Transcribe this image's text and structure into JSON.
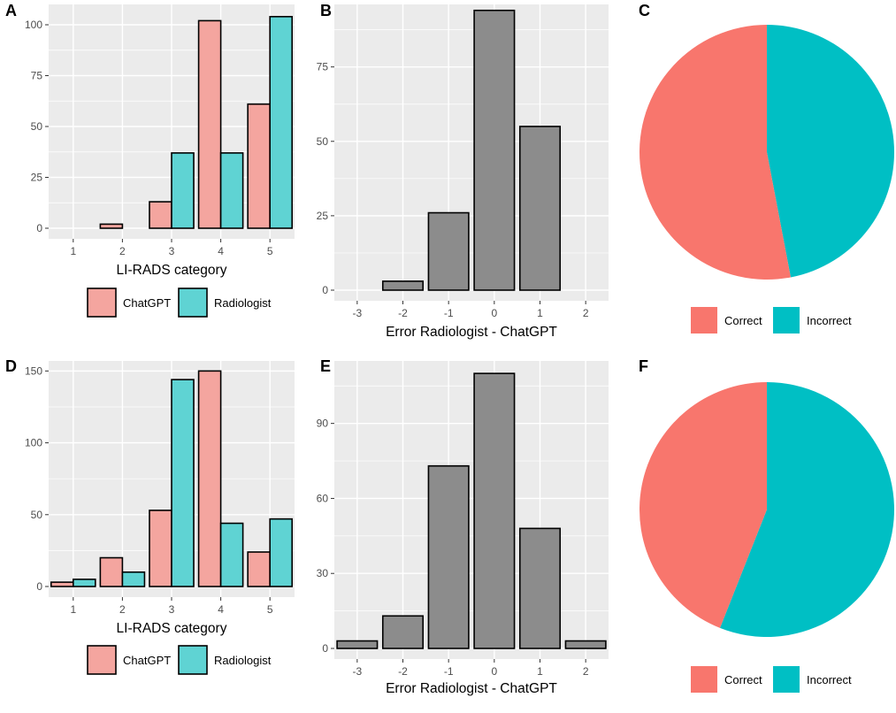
{
  "chart_data": [
    {
      "panel": "A",
      "type": "bar",
      "categories": [
        "1",
        "2",
        "3",
        "4",
        "5"
      ],
      "series": [
        {
          "name": "ChatGPT",
          "values": [
            0,
            2,
            13,
            102,
            61
          ]
        },
        {
          "name": "Radiologist",
          "values": [
            0,
            0,
            37,
            37,
            104
          ]
        }
      ],
      "xlabel": "LI-RADS category",
      "ylabel": "",
      "yticks": [
        "0",
        "25",
        "50",
        "75",
        "100"
      ],
      "ylim": [
        0,
        110
      ],
      "legend": "bottom"
    },
    {
      "panel": "B",
      "type": "bar",
      "categories": [
        "-3",
        "-2",
        "-1",
        "0",
        "1",
        "2"
      ],
      "values": [
        0,
        3,
        26,
        94,
        55,
        0
      ],
      "xlabel": "Error Radiologist - ChatGPT",
      "yticks": [
        "0",
        "25",
        "50",
        "75"
      ],
      "ylim": [
        0,
        96
      ]
    },
    {
      "panel": "C",
      "type": "pie",
      "slices": [
        {
          "name": "Correct",
          "value": 53
        },
        {
          "name": "Incorrect",
          "value": 47
        }
      ],
      "legend": "bottom"
    },
    {
      "panel": "D",
      "type": "bar",
      "categories": [
        "1",
        "2",
        "3",
        "4",
        "5"
      ],
      "series": [
        {
          "name": "ChatGPT",
          "values": [
            3,
            20,
            53,
            150,
            24
          ]
        },
        {
          "name": "Radiologist",
          "values": [
            5,
            10,
            144,
            44,
            47
          ]
        }
      ],
      "xlabel": "LI-RADS category",
      "yticks": [
        "0",
        "50",
        "100",
        "150"
      ],
      "ylim": [
        0,
        157
      ],
      "legend": "bottom"
    },
    {
      "panel": "E",
      "type": "bar",
      "categories": [
        "-3",
        "-2",
        "-1",
        "0",
        "1",
        "2"
      ],
      "values": [
        3,
        13,
        73,
        110,
        48,
        3
      ],
      "xlabel": "Error Radiologist - ChatGPT",
      "yticks": [
        "0",
        "30",
        "60",
        "90"
      ],
      "ylim": [
        0,
        115
      ]
    },
    {
      "panel": "F",
      "type": "pie",
      "slices": [
        {
          "name": "Correct",
          "value": 44
        },
        {
          "name": "Incorrect",
          "value": 56
        }
      ],
      "legend": "bottom"
    }
  ],
  "colors": {
    "chatgpt": "#f4a59f",
    "radiologist": "#5fd3d3",
    "error_bar": "#8c8c8c",
    "pie_correct": "#f8766d",
    "pie_incorrect": "#00bfc4",
    "panel_bg": "#ebebeb",
    "grid": "#ffffff"
  }
}
